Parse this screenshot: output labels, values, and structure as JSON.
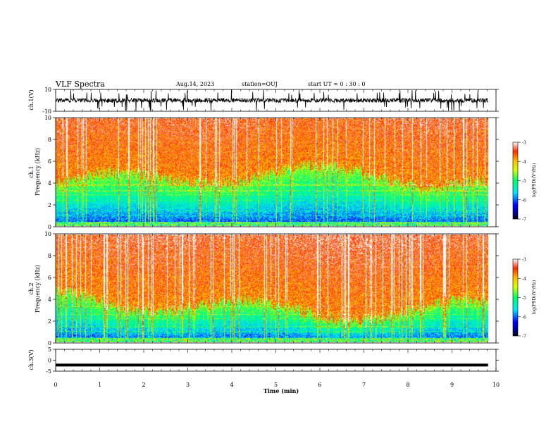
{
  "header": {
    "title": "VLF Spectra",
    "date": "Aug.14, 2023",
    "station": "station=OUJ",
    "start": "start UT =  0 : 30 : 0"
  },
  "chart_data": [
    {
      "type": "line",
      "panel": "ch1-waveform",
      "ylabel": "ch.1(V)",
      "ylim": [
        -10,
        10
      ],
      "yticks": [
        "10",
        "-10"
      ],
      "xlim": [
        0,
        10
      ],
      "xmax_data": 9.82,
      "baseline": 0,
      "color": "#000000"
    },
    {
      "type": "heatmap",
      "panel": "ch1-spectrogram",
      "ylabel_line1": "ch.1",
      "ylabel_line2": "Frequency (kHz)",
      "ylim": [
        0,
        10
      ],
      "yticks": [
        "0",
        "2",
        "4",
        "6",
        "8",
        "10"
      ],
      "xlim": [
        0,
        10
      ],
      "xmax_data": 9.82,
      "colorbar": {
        "label": "log(PSD)(V²/Hz)",
        "range": [
          -7,
          -3
        ],
        "ticks": [
          "-3",
          "-4",
          "-5",
          "-6",
          "-7"
        ]
      }
    },
    {
      "type": "heatmap",
      "panel": "ch2-spectrogram",
      "ylabel_line1": "ch.2",
      "ylabel_line2": "Frequency (kHz)",
      "ylim": [
        0,
        10
      ],
      "yticks": [
        "0",
        "2",
        "4",
        "6",
        "8",
        "10"
      ],
      "xlim": [
        0,
        10
      ],
      "xmax_data": 9.82,
      "colorbar": {
        "label": "log(PSD)(V²/Hz)",
        "range": [
          -7,
          -3
        ],
        "ticks": [
          "-3",
          "-4",
          "-5",
          "-6",
          "-7"
        ]
      }
    },
    {
      "type": "line",
      "panel": "ch3-waveform",
      "ylabel": "ch.3(V)",
      "ylim": [
        -5,
        5
      ],
      "yticks": [
        "5",
        "0",
        "-5"
      ],
      "xlim": [
        0,
        10
      ],
      "xmax_data": 9.82,
      "baseline": -2.2,
      "color": "#000000",
      "xlabel": "Time (min)",
      "xticks": [
        "0",
        "1",
        "2",
        "3",
        "4",
        "5",
        "6",
        "7",
        "8",
        "9",
        "10"
      ]
    }
  ]
}
